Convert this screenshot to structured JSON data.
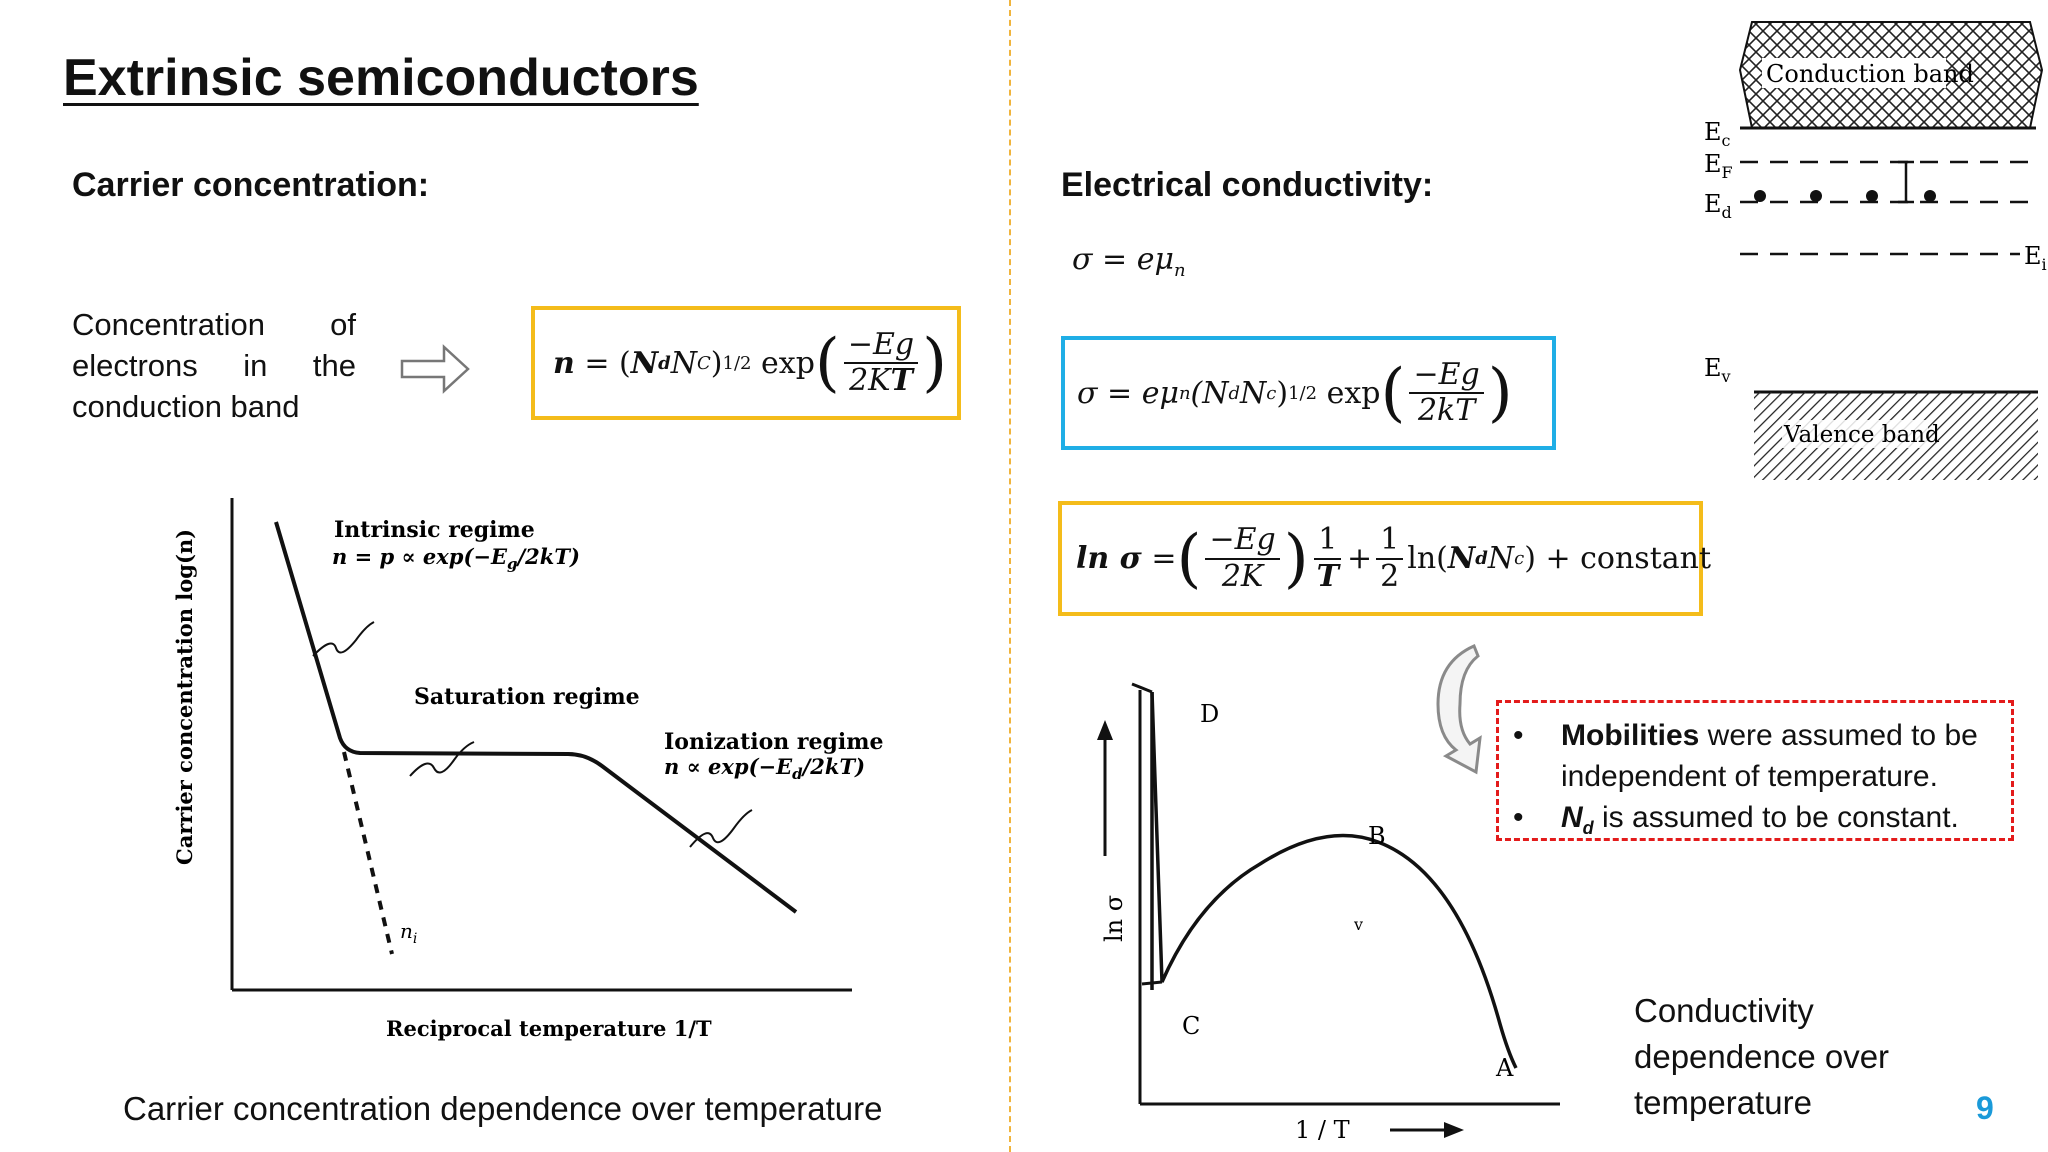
{
  "slide": {
    "title": "Extrinsic semiconductors",
    "page_number": "9"
  },
  "left": {
    "heading": "Carrier concentration:",
    "description": "Concentration of electrons in the conduction band",
    "formula": {
      "n": "n",
      "eq": "=",
      "Nd_base": "N",
      "Nd_sub": "d",
      "Nc_base": "N",
      "Nc_sub": "C",
      "exponent": "1/2",
      "exp": "exp",
      "num": "−Eg",
      "den": "2K",
      "den_T": "T"
    },
    "graph": {
      "ylabel": "Carrier concentration  log(n)",
      "xlabel": "Reciprocal temperature  1/T",
      "intrinsic_title": "Intrinsic regime",
      "intrinsic_eq": "n = p ∝ exp(−E",
      "intrinsic_eq_sub": "g",
      "intrinsic_eq_end": "/2kT)",
      "saturation_title": "Saturation regime",
      "ionization_title": "Ionization regime",
      "ionization_eq": "n ∝ exp(−E",
      "ionization_eq_sub": "d",
      "ionization_eq_end": "/2kT)",
      "ni_label": "n",
      "ni_sub": "i"
    },
    "caption": "Carrier concentration dependence over temperature"
  },
  "right": {
    "heading": "Electrical conductivity:",
    "formula1": "σ = eμ",
    "formula1_sub": "n",
    "formula2": {
      "lhs": "σ = eμ",
      "mu_sub": "n",
      "paren_open": "(N",
      "Nd_sub": "d",
      "Nc": "N",
      "Nc_sub": "c",
      "paren_close": ")",
      "exponent": "1/2",
      "exp": "exp",
      "num": "−Eg",
      "den": "2kT"
    },
    "formula3": {
      "lhs": "ln σ",
      "eq": "=",
      "num": "−Eg",
      "den": "2K",
      "one": "1",
      "T": "T",
      "plus": "+",
      "half_num": "1",
      "half_den": "2",
      "ln": "ln(",
      "Nd": "N",
      "Nd_sub": "d",
      "Nc": "N",
      "Nc_sub": "c",
      "tail": ") + constant"
    },
    "notes": [
      {
        "bullet": "•",
        "bold": "Mobilities",
        "text": " were assumed to be independent of temperature."
      },
      {
        "bullet": "•",
        "bold": "N",
        "bold_sub": "d",
        "text": " is assumed to be constant."
      }
    ],
    "band_diagram": {
      "conduction": "Conduction band",
      "valence": "Valence band",
      "Ec": "E",
      "Ec_sub": "c",
      "Ef": "E",
      "Ef_sub": "F",
      "Ed": "E",
      "Ed_sub": "d",
      "Ei": "E",
      "Ei_sub": "i",
      "Ev": "E",
      "Ev_sub": "v"
    },
    "conductivity_graph": {
      "ylabel": "ln σ",
      "xlabel": "1 / T",
      "point_A": "A",
      "point_B": "B",
      "point_C": "C",
      "point_D": "D",
      "mark": "v"
    },
    "caption": "Conductivity dependence over temperature"
  },
  "colors": {
    "yellow_box": "#f4bc1a",
    "blue_box": "#1faee6",
    "red_dashed": "#e31b1b",
    "divider": "#f0b43c",
    "page_number": "#1a9ad9"
  },
  "icons": [
    "right-arrow-icon",
    "curved-down-arrow-icon",
    "up-arrow-icon",
    "right-axis-arrow-icon"
  ]
}
